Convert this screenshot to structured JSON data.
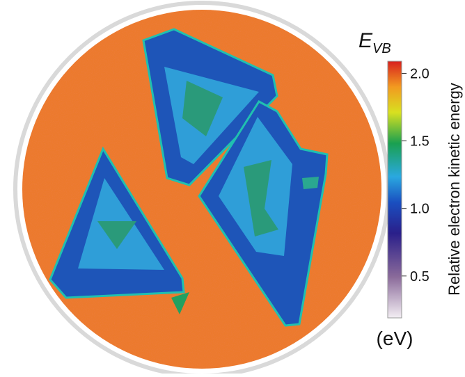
{
  "chart_data": {
    "type": "colorbar",
    "title": {
      "main": "E",
      "sub": "VB"
    },
    "label": "Relative electron kinetic energy",
    "unit": "(eV)",
    "clim": [
      0.19,
      2.09
    ],
    "ticks": [
      0.5,
      {
        "value": 1,
        "label": "1.0"
      },
      1.5,
      {
        "value": 2,
        "label": "2.0"
      }
    ]
  }
}
